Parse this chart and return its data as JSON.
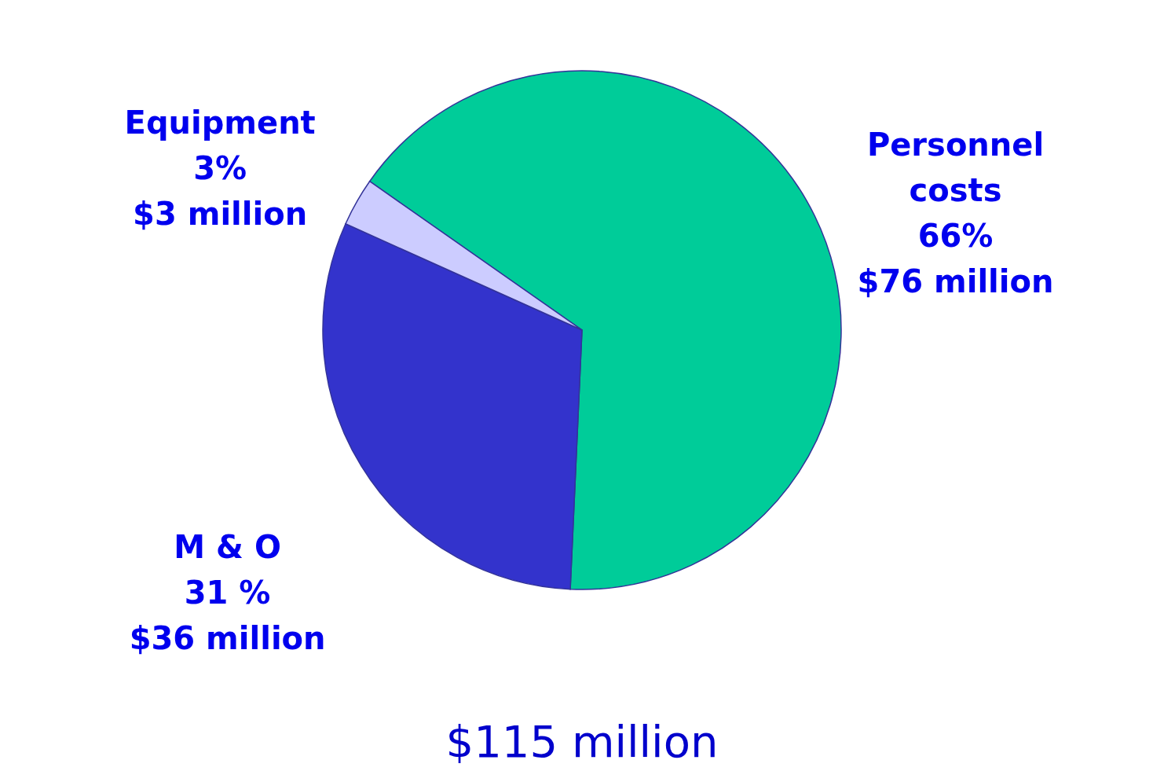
{
  "chart_data": {
    "type": "pie",
    "categories": [
      "Personnel costs",
      "M & O",
      "Equipment"
    ],
    "values": [
      66,
      31,
      3
    ],
    "colors": [
      "#00cc99",
      "#3333cc",
      "#ccccff"
    ],
    "value_labels": [
      "66%\n$76 million",
      "31 %\n$36 million",
      "3%\n$3 million"
    ],
    "annotations": [
      "$115 million"
    ],
    "legend": false
  }
}
